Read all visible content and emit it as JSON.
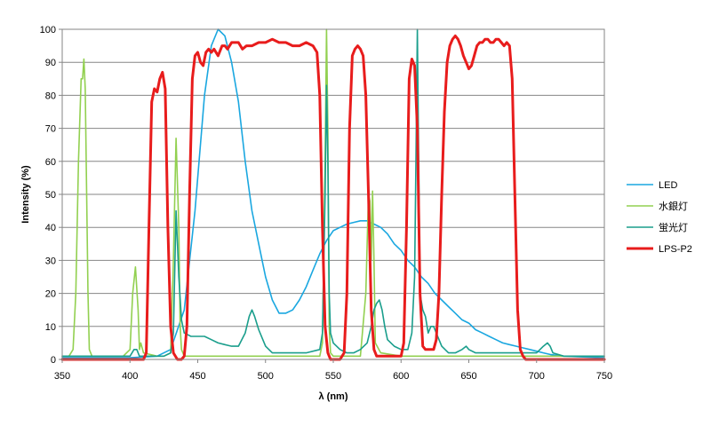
{
  "chart_data": {
    "type": "line",
    "xlabel": "λ (nm)",
    "ylabel": "Intensity (%)",
    "xlim": [
      350,
      750
    ],
    "ylim": [
      0,
      100
    ],
    "x_ticks": [
      "350",
      "400",
      "450",
      "500",
      "550",
      "600",
      "650",
      "700",
      "750"
    ],
    "y_ticks": [
      "0",
      "10",
      "20",
      "30",
      "40",
      "50",
      "60",
      "70",
      "80",
      "90",
      "100"
    ],
    "grid": "horizontal",
    "legend_position": "right",
    "series": [
      {
        "name": "LED",
        "color": "#1aa7e0",
        "points": [
          [
            350,
            0.5
          ],
          [
            400,
            0.5
          ],
          [
            420,
            1
          ],
          [
            430,
            3
          ],
          [
            440,
            15
          ],
          [
            448,
            45
          ],
          [
            455,
            80
          ],
          [
            460,
            95
          ],
          [
            465,
            100
          ],
          [
            470,
            98
          ],
          [
            475,
            90
          ],
          [
            480,
            78
          ],
          [
            485,
            60
          ],
          [
            490,
            45
          ],
          [
            495,
            35
          ],
          [
            500,
            25
          ],
          [
            505,
            18
          ],
          [
            510,
            14
          ],
          [
            515,
            14
          ],
          [
            520,
            15
          ],
          [
            525,
            18
          ],
          [
            530,
            22
          ],
          [
            535,
            27
          ],
          [
            540,
            32
          ],
          [
            545,
            36
          ],
          [
            550,
            39
          ],
          [
            555,
            40
          ],
          [
            560,
            41
          ],
          [
            565,
            41.5
          ],
          [
            570,
            42
          ],
          [
            575,
            42
          ],
          [
            580,
            41
          ],
          [
            585,
            40
          ],
          [
            590,
            38
          ],
          [
            595,
            35
          ],
          [
            600,
            33
          ],
          [
            605,
            30
          ],
          [
            610,
            28
          ],
          [
            615,
            25
          ],
          [
            620,
            23
          ],
          [
            625,
            20
          ],
          [
            630,
            18
          ],
          [
            635,
            16
          ],
          [
            640,
            14
          ],
          [
            645,
            12
          ],
          [
            650,
            11
          ],
          [
            655,
            9
          ],
          [
            660,
            8
          ],
          [
            665,
            7
          ],
          [
            670,
            6
          ],
          [
            675,
            5
          ],
          [
            680,
            4.5
          ],
          [
            685,
            4
          ],
          [
            690,
            3.5
          ],
          [
            695,
            3
          ],
          [
            700,
            2.5
          ],
          [
            705,
            2
          ],
          [
            710,
            1.5
          ],
          [
            720,
            1
          ],
          [
            730,
            0.8
          ],
          [
            750,
            0.5
          ]
        ]
      },
      {
        "name": "水銀灯",
        "color": "#92d050",
        "points": [
          [
            350,
            1
          ],
          [
            355,
            1
          ],
          [
            358,
            3
          ],
          [
            360,
            20
          ],
          [
            362,
            60
          ],
          [
            364,
            85
          ],
          [
            365,
            85
          ],
          [
            366,
            91
          ],
          [
            367,
            82
          ],
          [
            369,
            20
          ],
          [
            370,
            3
          ],
          [
            372,
            1
          ],
          [
            380,
            1
          ],
          [
            395,
            1
          ],
          [
            400,
            3
          ],
          [
            402,
            20
          ],
          [
            404,
            28
          ],
          [
            406,
            15
          ],
          [
            407,
            3
          ],
          [
            408,
            5
          ],
          [
            410,
            2
          ],
          [
            420,
            1
          ],
          [
            425,
            1
          ],
          [
            430,
            2
          ],
          [
            432,
            30
          ],
          [
            434,
            67
          ],
          [
            436,
            40
          ],
          [
            437,
            10
          ],
          [
            438,
            3
          ],
          [
            440,
            1
          ],
          [
            450,
            1
          ],
          [
            500,
            1
          ],
          [
            540,
            1
          ],
          [
            542,
            5
          ],
          [
            544,
            60
          ],
          [
            545,
            100
          ],
          [
            546,
            70
          ],
          [
            547,
            10
          ],
          [
            548,
            2
          ],
          [
            550,
            1
          ],
          [
            570,
            1
          ],
          [
            574,
            20
          ],
          [
            576,
            50
          ],
          [
            577,
            48
          ],
          [
            578,
            30
          ],
          [
            579,
            51
          ],
          [
            580,
            30
          ],
          [
            581,
            5
          ],
          [
            585,
            2
          ],
          [
            600,
            1
          ],
          [
            700,
            1
          ],
          [
            750,
            1
          ]
        ]
      },
      {
        "name": "蛍光灯",
        "color": "#1a9e8c",
        "points": [
          [
            350,
            1
          ],
          [
            400,
            1
          ],
          [
            403,
            3
          ],
          [
            405,
            3
          ],
          [
            407,
            1
          ],
          [
            425,
            1
          ],
          [
            430,
            2
          ],
          [
            432,
            8
          ],
          [
            434,
            45
          ],
          [
            436,
            25
          ],
          [
            438,
            12
          ],
          [
            440,
            8
          ],
          [
            445,
            7
          ],
          [
            450,
            7
          ],
          [
            455,
            7
          ],
          [
            460,
            6
          ],
          [
            465,
            5
          ],
          [
            470,
            4.5
          ],
          [
            475,
            4
          ],
          [
            480,
            4
          ],
          [
            485,
            8
          ],
          [
            488,
            13
          ],
          [
            490,
            15
          ],
          [
            492,
            13
          ],
          [
            495,
            9
          ],
          [
            500,
            4
          ],
          [
            505,
            2
          ],
          [
            510,
            2
          ],
          [
            520,
            2
          ],
          [
            530,
            2
          ],
          [
            540,
            3
          ],
          [
            542,
            8
          ],
          [
            544,
            50
          ],
          [
            545,
            83
          ],
          [
            546,
            60
          ],
          [
            547,
            20
          ],
          [
            548,
            8
          ],
          [
            550,
            5
          ],
          [
            555,
            3
          ],
          [
            560,
            2
          ],
          [
            565,
            2
          ],
          [
            570,
            3
          ],
          [
            575,
            5
          ],
          [
            578,
            10
          ],
          [
            580,
            15
          ],
          [
            582,
            17
          ],
          [
            584,
            18
          ],
          [
            586,
            15
          ],
          [
            588,
            10
          ],
          [
            590,
            6
          ],
          [
            595,
            4
          ],
          [
            600,
            3
          ],
          [
            605,
            3
          ],
          [
            608,
            8
          ],
          [
            610,
            25
          ],
          [
            611,
            60
          ],
          [
            612,
            100
          ],
          [
            613,
            60
          ],
          [
            614,
            20
          ],
          [
            616,
            15
          ],
          [
            618,
            13
          ],
          [
            620,
            8
          ],
          [
            622,
            10
          ],
          [
            624,
            10
          ],
          [
            626,
            8
          ],
          [
            630,
            4
          ],
          [
            635,
            2
          ],
          [
            640,
            2
          ],
          [
            645,
            3
          ],
          [
            648,
            4
          ],
          [
            650,
            3
          ],
          [
            655,
            2
          ],
          [
            660,
            2
          ],
          [
            670,
            2
          ],
          [
            680,
            2
          ],
          [
            690,
            2
          ],
          [
            700,
            2
          ],
          [
            705,
            4
          ],
          [
            708,
            5
          ],
          [
            710,
            4
          ],
          [
            712,
            2
          ],
          [
            720,
            1
          ],
          [
            750,
            1
          ]
        ]
      },
      {
        "name": "LPS-P2",
        "color": "#e81c1c",
        "points": [
          [
            350,
            0
          ],
          [
            410,
            0
          ],
          [
            412,
            2
          ],
          [
            414,
            40
          ],
          [
            416,
            78
          ],
          [
            418,
            82
          ],
          [
            420,
            81
          ],
          [
            422,
            85
          ],
          [
            424,
            87
          ],
          [
            426,
            82
          ],
          [
            428,
            40
          ],
          [
            430,
            10
          ],
          [
            432,
            2
          ],
          [
            435,
            0
          ],
          [
            438,
            0
          ],
          [
            440,
            1
          ],
          [
            442,
            10
          ],
          [
            444,
            50
          ],
          [
            446,
            85
          ],
          [
            448,
            92
          ],
          [
            450,
            93
          ],
          [
            452,
            90
          ],
          [
            454,
            89
          ],
          [
            456,
            93
          ],
          [
            458,
            94
          ],
          [
            460,
            93
          ],
          [
            462,
            94
          ],
          [
            465,
            92
          ],
          [
            468,
            95
          ],
          [
            470,
            95
          ],
          [
            472,
            94
          ],
          [
            475,
            96
          ],
          [
            478,
            96
          ],
          [
            480,
            96
          ],
          [
            483,
            94
          ],
          [
            486,
            95
          ],
          [
            490,
            95
          ],
          [
            495,
            96
          ],
          [
            500,
            96
          ],
          [
            505,
            97
          ],
          [
            510,
            96
          ],
          [
            515,
            96
          ],
          [
            520,
            95
          ],
          [
            525,
            95
          ],
          [
            530,
            96
          ],
          [
            535,
            95
          ],
          [
            538,
            93
          ],
          [
            540,
            80
          ],
          [
            542,
            40
          ],
          [
            544,
            10
          ],
          [
            546,
            2
          ],
          [
            548,
            0
          ],
          [
            555,
            0
          ],
          [
            558,
            2
          ],
          [
            560,
            20
          ],
          [
            562,
            70
          ],
          [
            564,
            92
          ],
          [
            566,
            94
          ],
          [
            568,
            95
          ],
          [
            570,
            94
          ],
          [
            572,
            92
          ],
          [
            574,
            80
          ],
          [
            576,
            50
          ],
          [
            578,
            15
          ],
          [
            580,
            3
          ],
          [
            582,
            1
          ],
          [
            600,
            1
          ],
          [
            602,
            5
          ],
          [
            604,
            40
          ],
          [
            606,
            85
          ],
          [
            608,
            91
          ],
          [
            610,
            89
          ],
          [
            612,
            70
          ],
          [
            614,
            20
          ],
          [
            616,
            4
          ],
          [
            618,
            3
          ],
          [
            624,
            3
          ],
          [
            626,
            6
          ],
          [
            628,
            20
          ],
          [
            630,
            50
          ],
          [
            632,
            75
          ],
          [
            634,
            90
          ],
          [
            636,
            95
          ],
          [
            638,
            97
          ],
          [
            640,
            98
          ],
          [
            642,
            97
          ],
          [
            644,
            95
          ],
          [
            646,
            92
          ],
          [
            648,
            90
          ],
          [
            650,
            88
          ],
          [
            652,
            89
          ],
          [
            654,
            92
          ],
          [
            656,
            95
          ],
          [
            658,
            96
          ],
          [
            660,
            96
          ],
          [
            662,
            97
          ],
          [
            664,
            97
          ],
          [
            666,
            96
          ],
          [
            668,
            96
          ],
          [
            670,
            97
          ],
          [
            672,
            97
          ],
          [
            674,
            96
          ],
          [
            676,
            95
          ],
          [
            678,
            96
          ],
          [
            680,
            95
          ],
          [
            682,
            85
          ],
          [
            684,
            50
          ],
          [
            686,
            15
          ],
          [
            688,
            3
          ],
          [
            690,
            1
          ],
          [
            692,
            0
          ],
          [
            750,
            0
          ]
        ]
      }
    ]
  }
}
